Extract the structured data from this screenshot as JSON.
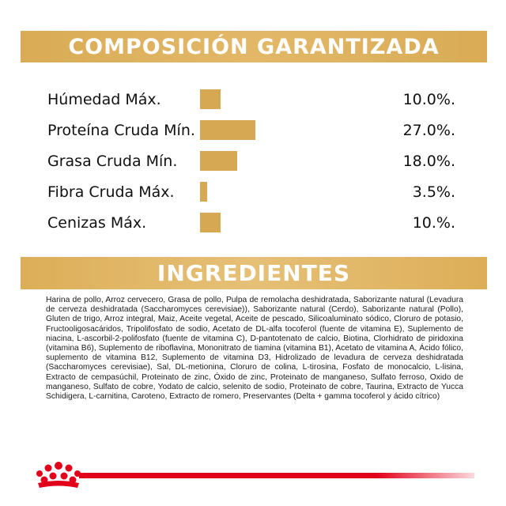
{
  "composition": {
    "title": "COMPOSICIÓN GARANTIZADA",
    "bar_color": "#d6a853",
    "rows": [
      {
        "label": "Húmedad Máx.",
        "value": "10.0%.",
        "fraction": 0.1
      },
      {
        "label": "Proteína Cruda Mín.",
        "value": "27.0%.",
        "fraction": 0.27
      },
      {
        "label": "Grasa Cruda Mín.",
        "value": "18.0%.",
        "fraction": 0.18
      },
      {
        "label": "Fibra Cruda Máx.",
        "value": "3.5%.",
        "fraction": 0.035
      },
      {
        "label": "Cenizas Máx.",
        "value": "10.%.",
        "fraction": 0.1
      }
    ]
  },
  "ingredients": {
    "title": "INGREDIENTES",
    "text": "Harina de pollo, Arroz cervecero, Grasa de pollo, Pulpa de remolacha deshidratada, Saborizante natural (Levadura de cerveza deshidratada (Saccharomyces cerevisiae)), Saborizante natural (Cerdo), Saborizante natural (Pollo), Gluten de trigo, Arroz integral, Maiz, Aceite vegetal, Aceite de pescado, Silicoaluminato sódico, Cloruro de potasio, Fructooligosacáridos, Tripolifosfato de sodio, Acetato de DL-alfa tocoferol (fuente de vitamina E), Suplemento de niacina, L-ascorbil-2-polifosfato (fuente de vitamina C), D-pantotenato de calcio, Biotina, Clorhidrato de piridoxina (vitamina B6), Suplemento de riboflavina, Mononitrato de tiamina (vitamina B1), Acetato de vitamina A, Ácido fólico, suplemento de vitamina B12, Suplemento de vitamina D3, Hidrolizado de levadura de cerveza deshidratada (Saccharomyces cerevisiae), Sal, DL-metionina, Cloruro de colina, L-tirosina, Fosfato de monocalcio, L-lisina, Extracto de cempasúchil, Proteinato de zinc, Óxido de zinc, Proteinato de manganeso, Sulfato ferroso, Oxido de manganeso, Sulfato de cobre, Yodato de calcio, selenito de sodio, Proteinato de cobre, Taurina, Extracto de Yucca Schidigera, L-carnitina, Caroteno, Extracto de romero, Preservantes (Delta + gamma tocoferol y ácido cítrico)"
  },
  "footer": {
    "logo_icon": "royal-canin-crown-icon",
    "accent_color": "#e2001a"
  }
}
